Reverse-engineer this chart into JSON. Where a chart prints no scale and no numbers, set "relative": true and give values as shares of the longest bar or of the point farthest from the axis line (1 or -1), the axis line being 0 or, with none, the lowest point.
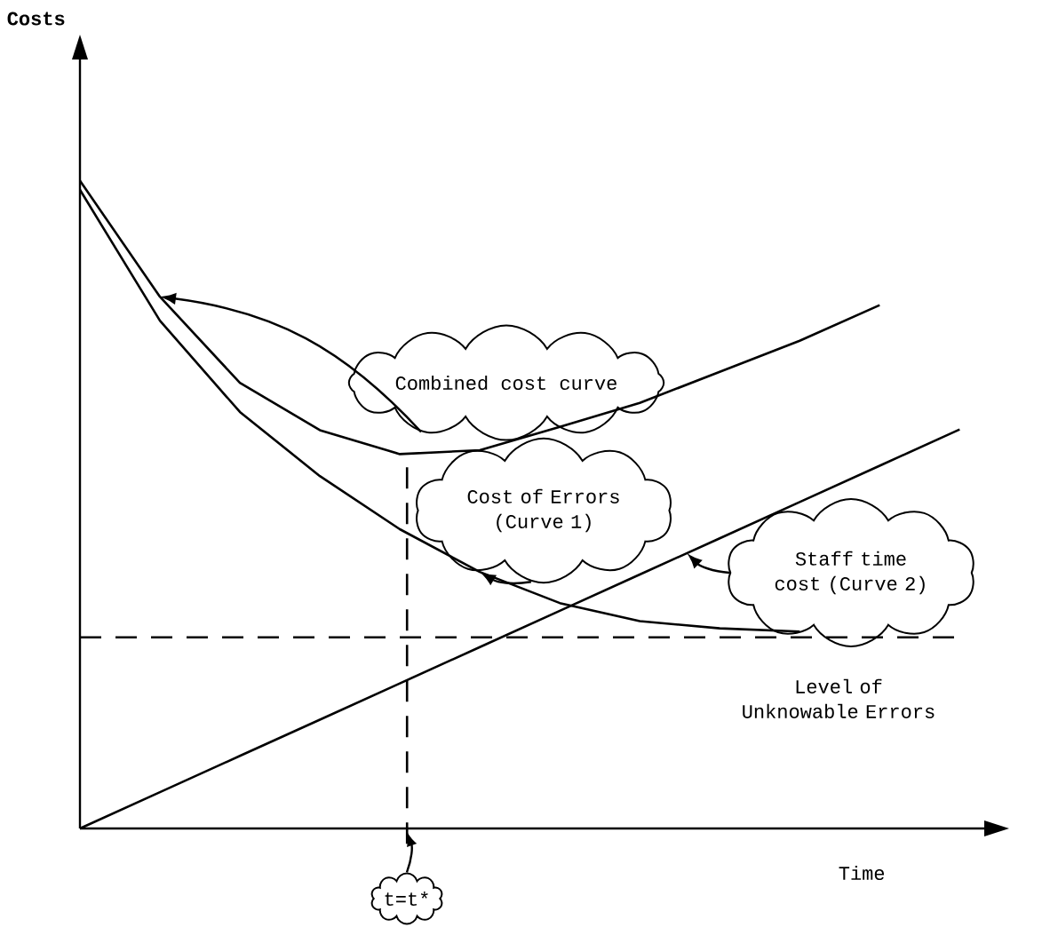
{
  "chart_data": {
    "type": "line",
    "relative": true,
    "xlabel": "Time",
    "categories": [
      null,
      null,
      null,
      null,
      null,
      null,
      null,
      null,
      null,
      null,
      null,
      null
    ],
    "series": [
      {
        "name": "Combined cost curve",
        "color": "#000000",
        "values": [
          1,
          0.821,
          0.688,
          0.615,
          0.578,
          0.584,
          0.62,
          0.657,
          0.705,
          0.753,
          0.808,
          null
        ]
      },
      {
        "name": "Cost of Errors (Curve 1)",
        "color": "#000000",
        "values": [
          0.986,
          0.784,
          0.643,
          0.544,
          0.462,
          0.396,
          0.348,
          0.32,
          0.309,
          0.304,
          null,
          null
        ]
      },
      {
        "name": "Staff time cost (Curve 2)",
        "color": "#000000",
        "values": [
          0,
          0.056,
          0.112,
          0.168,
          0.224,
          0.28,
          0.336,
          0.392,
          0.448,
          0.504,
          0.56,
          0.616
        ]
      }
    ],
    "ref_lines": [
      {
        "axis": "y",
        "value": 0.295,
        "label": "Level of Unknowable Errors",
        "line_style": "dashed"
      }
    ],
    "annotations": [
      "t=t*",
      "Costs"
    ]
  }
}
